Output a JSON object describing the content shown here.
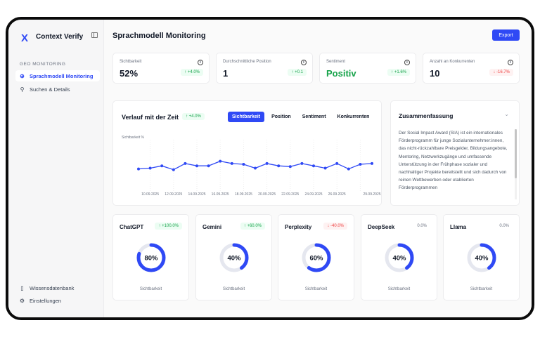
{
  "app": {
    "brand": "Context Verify",
    "logo": "X"
  },
  "sidebar": {
    "section": "GEO MONITORING",
    "items": [
      {
        "label": "Sprachmodell Monitoring",
        "icon": "monitor-icon"
      },
      {
        "label": "Suchen & Details",
        "icon": "search-icon"
      }
    ],
    "bottom": [
      {
        "label": "Wissensdatenbank",
        "icon": "book-icon"
      },
      {
        "label": "Einstellungen",
        "icon": "gear-icon"
      }
    ]
  },
  "header": {
    "title": "Sprachmodell Monitoring",
    "export": "Export"
  },
  "kpis": [
    {
      "label": "Sichtbarkeit",
      "value": "52%",
      "change": "+4.0%",
      "trend": "up"
    },
    {
      "label": "Durchschnittliche Position",
      "value": "1",
      "change": "+0.1",
      "trend": "up"
    },
    {
      "label": "Sentiment",
      "value": "Positiv",
      "change": "+1.6%",
      "trend": "up"
    },
    {
      "label": "Anzahl an Konkurrenten",
      "value": "10",
      "change": "-16.7%",
      "trend": "down"
    }
  ],
  "chart": {
    "title": "Verlauf mit der Zeit",
    "change": "+4.0%",
    "tabs": [
      "Sichtbarkeit",
      "Position",
      "Sentiment",
      "Konkurrenten"
    ]
  },
  "chart_data": {
    "type": "line",
    "ylabel": "Sichtbarkeit %",
    "ylim": [
      0,
      100
    ],
    "x": [
      "09.09.2025",
      "10.09.2025",
      "11.09.2025",
      "12.09.2025",
      "13.09.2025",
      "14.09.2025",
      "15.09.2025",
      "16.09.2025",
      "17.09.2025",
      "18.09.2025",
      "19.09.2025",
      "20.09.2025",
      "21.09.2025",
      "22.09.2025",
      "23.09.2025",
      "24.09.2025",
      "25.09.2025",
      "26.09.2025",
      "27.09.2025",
      "28.09.2025",
      "29.09.2025"
    ],
    "tick_labels": [
      "10.09.2025",
      "12.09.2025",
      "14.09.2025",
      "16.09.2025",
      "18.09.2025",
      "20.09.2025",
      "22.09.2025",
      "24.09.2025",
      "26.09.2025",
      "29.09.2025"
    ],
    "values": [
      44,
      45,
      48,
      43,
      51,
      48,
      48,
      54,
      51,
      50,
      45,
      51,
      48,
      47,
      51,
      48,
      45,
      51,
      44,
      50,
      51
    ]
  },
  "summary": {
    "title": "Zusammenfassung",
    "text": "Der Social Impact Award (SIA) ist ein internationales Förderprogramm für junge Sozialunternehmer:innen, das nicht-rückzahlbare Preisgelder, Bildungsangebote, Mentoring, Netzwerkzugänge und umfassende Unterstützung in der Frühphase sozialer und nachhaltiger Projekte bereitstellt und sich dadurch von reinen Wettbewerben oder etablierten Förderprogrammen"
  },
  "models": [
    {
      "name": "ChatGPT",
      "change": "+100.0%",
      "trend": "up",
      "value": 80,
      "label": "80%",
      "sub": "Sichtbarkeit"
    },
    {
      "name": "Gemini",
      "change": "+60.0%",
      "trend": "up",
      "value": 40,
      "label": "40%",
      "sub": "Sichtbarkeit"
    },
    {
      "name": "Perplexity",
      "change": "-40.0%",
      "trend": "down",
      "value": 60,
      "label": "60%",
      "sub": "Sichtbarkeit"
    },
    {
      "name": "DeepSeek",
      "change": "0.0%",
      "trend": "flat",
      "value": 40,
      "label": "40%",
      "sub": "Sichtbarkeit"
    },
    {
      "name": "Llama",
      "change": "0.0%",
      "trend": "flat",
      "value": 40,
      "label": "40%",
      "sub": "Sichtbarkeit"
    }
  ],
  "colors": {
    "accent": "#2f49f5",
    "positive": "#16a34a",
    "negative": "#ef4444",
    "track": "#e5e7ef"
  }
}
